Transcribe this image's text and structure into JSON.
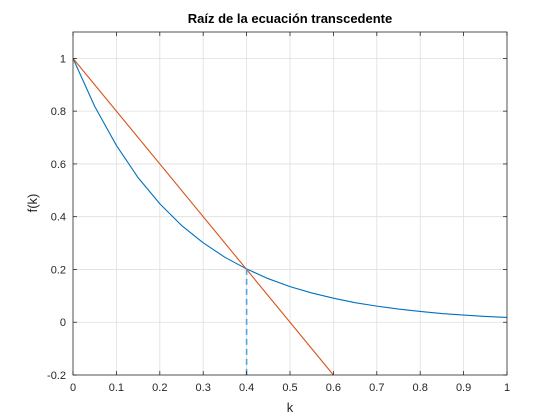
{
  "chart_data": {
    "type": "line",
    "title": "Raíz de la ecuación transcedente",
    "xlabel": "k",
    "ylabel": "f(k)",
    "xlim": [
      0,
      1
    ],
    "ylim": [
      -0.2,
      1.1
    ],
    "grid": true,
    "xticks": [
      0,
      0.1,
      0.2,
      0.3,
      0.4,
      0.5,
      0.6,
      0.7,
      0.8,
      0.9,
      1
    ],
    "xtick_labels": [
      "0",
      "0.1",
      "0.2",
      "0.3",
      "0.4",
      "0.5",
      "0.6",
      "0.7",
      "0.8",
      "0.9",
      "1"
    ],
    "yticks": [
      -0.2,
      0,
      0.2,
      0.4,
      0.6,
      0.8,
      1
    ],
    "ytick_labels": [
      "-0.2",
      "0",
      "0.2",
      "0.4",
      "0.6",
      "0.8",
      "1"
    ],
    "series": [
      {
        "color": "#0072BD",
        "style": "solid",
        "x": [
          0,
          0.05,
          0.1,
          0.15,
          0.2,
          0.25,
          0.3,
          0.35,
          0.4,
          0.45,
          0.5,
          0.55,
          0.6,
          0.65,
          0.7,
          0.75,
          0.8,
          0.85,
          0.9,
          0.95,
          1
        ],
        "y": [
          1,
          0.818,
          0.67,
          0.548,
          0.449,
          0.367,
          0.301,
          0.246,
          0.202,
          0.165,
          0.135,
          0.111,
          0.091,
          0.074,
          0.061,
          0.05,
          0.041,
          0.033,
          0.027,
          0.022,
          0.018
        ]
      },
      {
        "color": "#D95319",
        "style": "solid",
        "x": [
          0,
          0.6
        ],
        "y": [
          1,
          -0.2
        ]
      },
      {
        "color": "#4DA6DF",
        "style": "dashed",
        "x": [
          0.4,
          0.4
        ],
        "y": [
          0.202,
          -0.2
        ]
      }
    ]
  }
}
